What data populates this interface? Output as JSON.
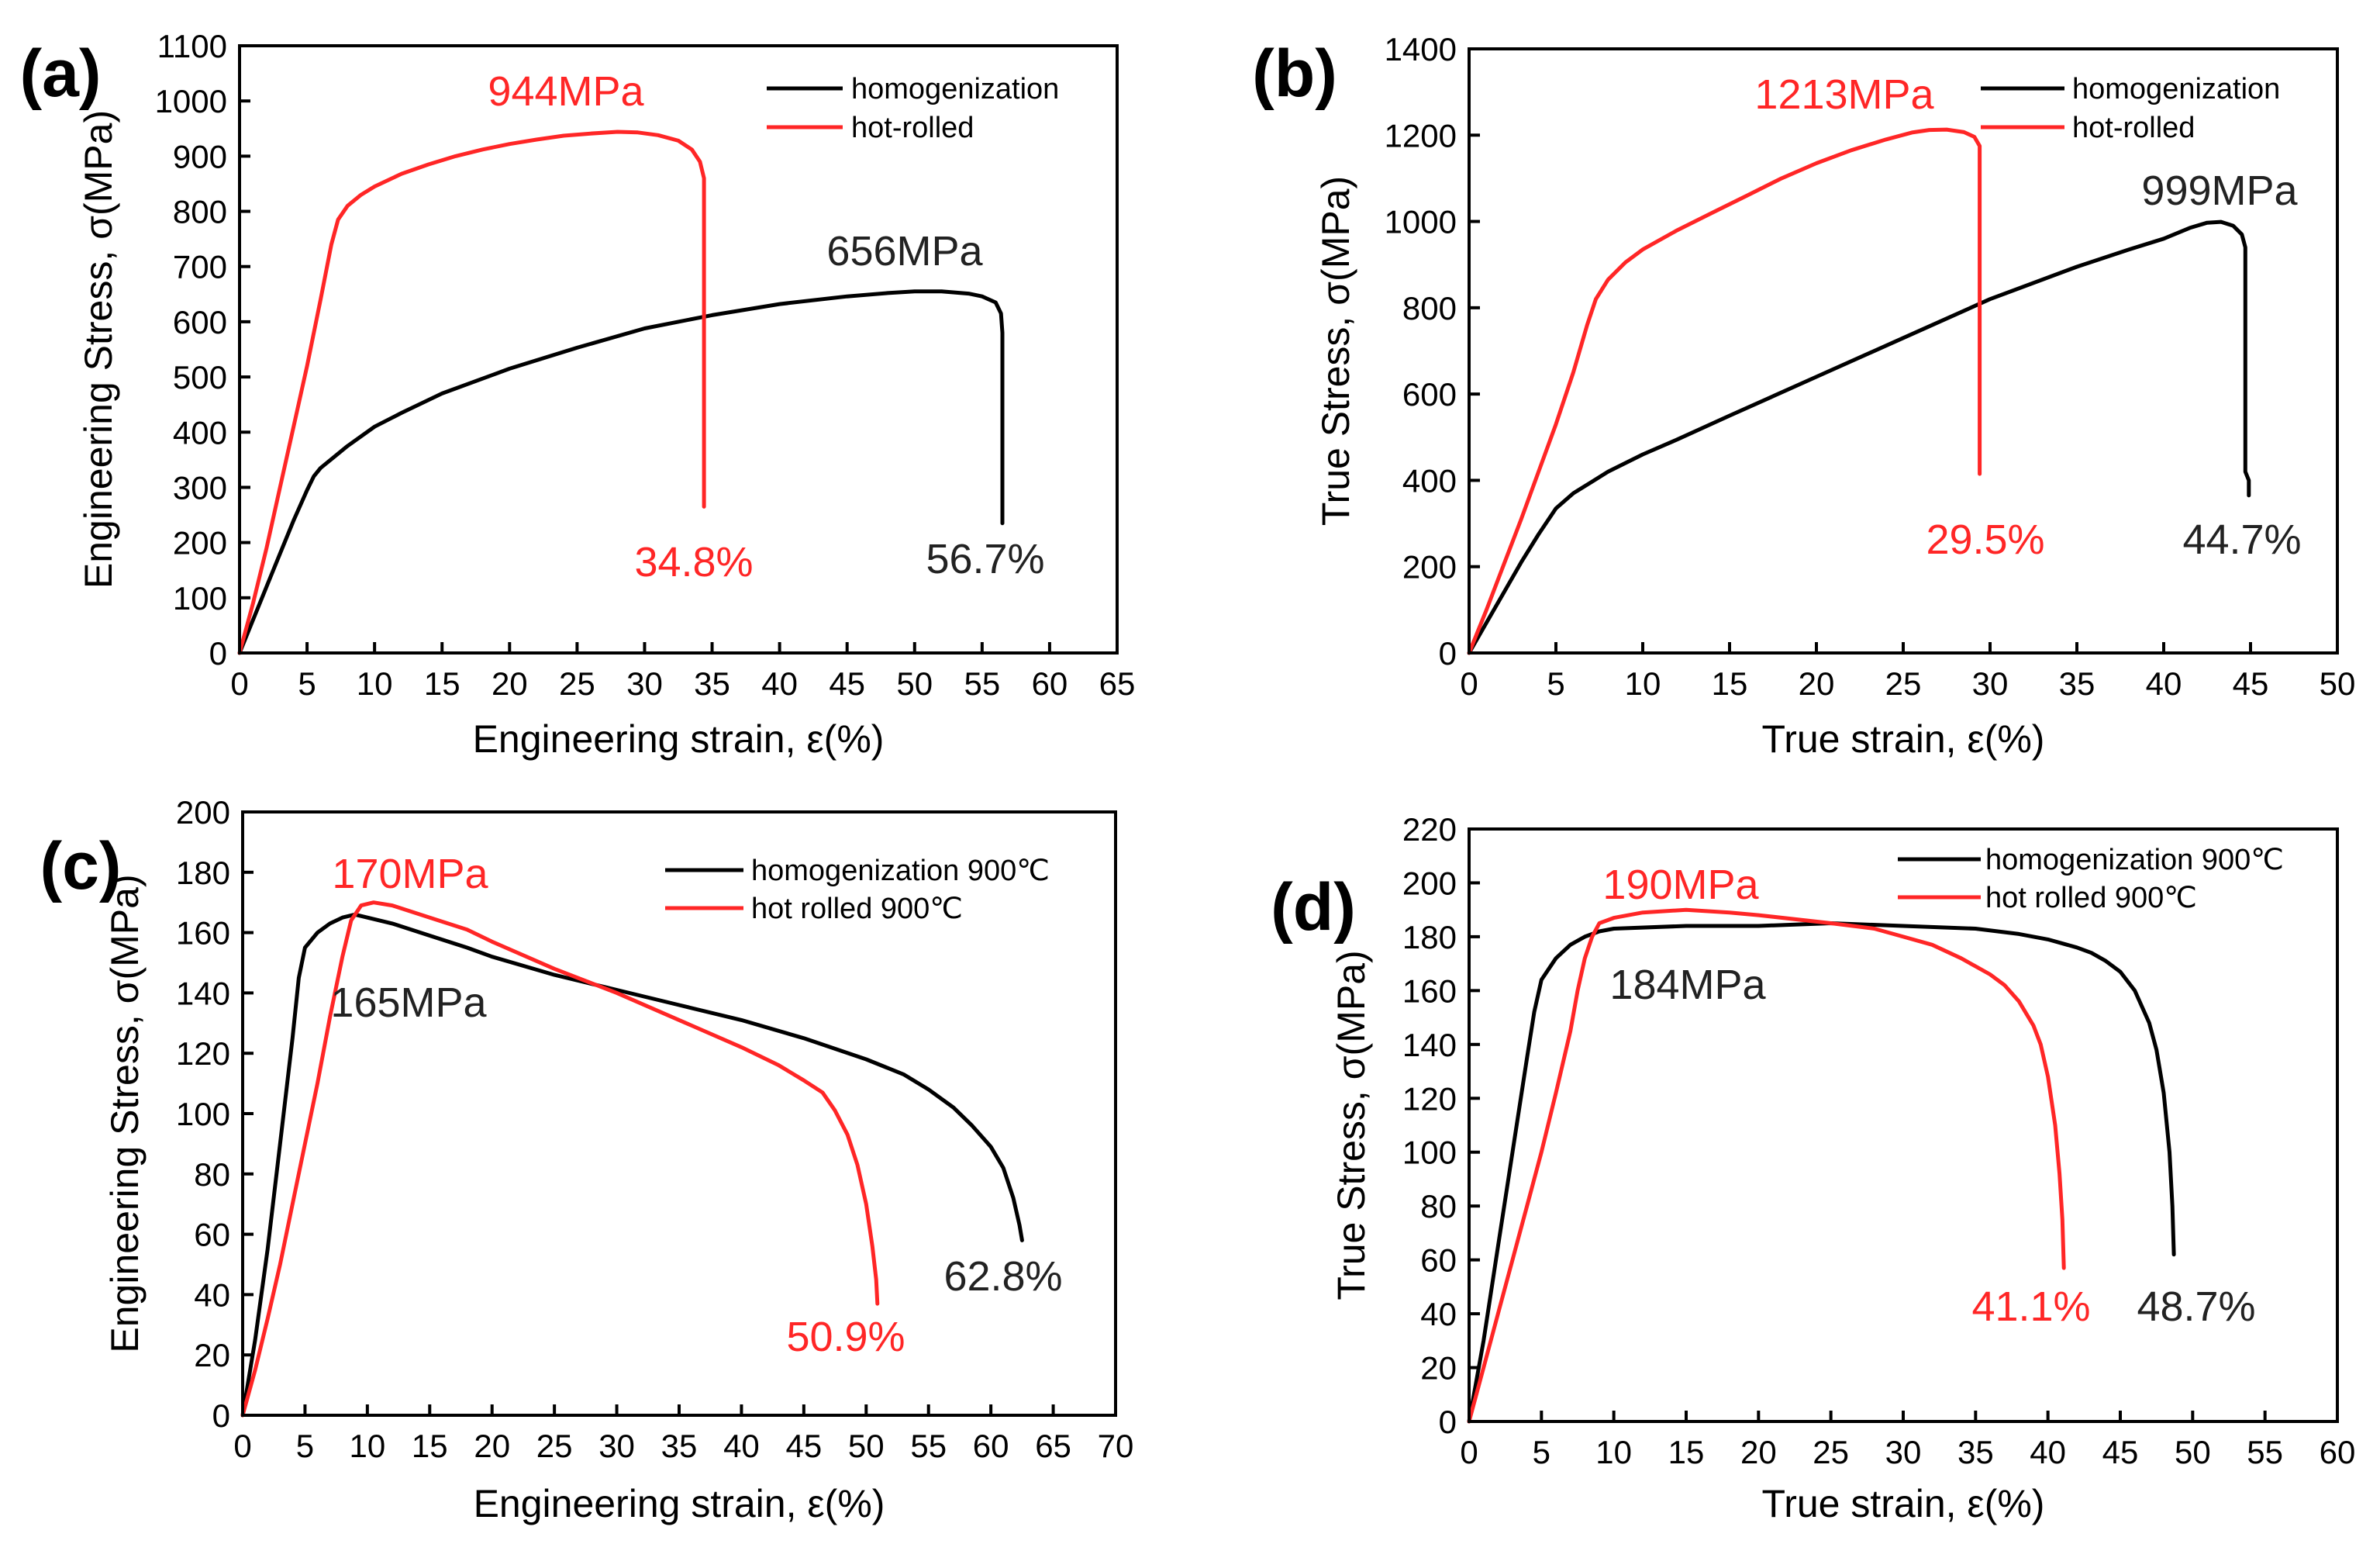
{
  "chart_data": [
    {
      "type": "line",
      "panel_label": "(a)",
      "xlabel": "Engineering strain, ε(%)",
      "ylabel": "Engineering Stress, σ(MPa)",
      "xlim": [
        0,
        65
      ],
      "ylim": [
        0,
        1100
      ],
      "xticks": [
        0,
        5,
        10,
        15,
        20,
        25,
        30,
        35,
        40,
        45,
        50,
        55,
        60,
        65
      ],
      "yticks": [
        0,
        100,
        200,
        300,
        400,
        500,
        600,
        700,
        800,
        900,
        1000,
        1100
      ],
      "series": [
        {
          "name": "homogenization",
          "color": "#000000",
          "x": [
            0,
            1,
            2,
            3,
            4,
            5,
            5.5,
            6,
            7,
            8,
            10,
            12,
            15,
            18,
            20,
            25,
            30,
            35,
            40,
            45,
            48,
            50,
            52,
            54,
            55,
            56,
            56.4,
            56.5,
            56.5
          ],
          "y": [
            0,
            60,
            120,
            180,
            240,
            295,
            320,
            335,
            355,
            375,
            410,
            435,
            470,
            497,
            515,
            553,
            588,
            612,
            632,
            646,
            652,
            655,
            655,
            651,
            646,
            635,
            615,
            580,
            235
          ]
        },
        {
          "name": "hot-rolled",
          "color": "#ff2626",
          "x": [
            0,
            1,
            2,
            3,
            4,
            5,
            6,
            6.8,
            7.3,
            8,
            9,
            10,
            12,
            14,
            16,
            18,
            20,
            22,
            24,
            26,
            28,
            29.5,
            31,
            32.5,
            33.5,
            34.1,
            34.4,
            34.4
          ],
          "y": [
            0,
            90,
            190,
            300,
            410,
            520,
            640,
            740,
            785,
            810,
            830,
            845,
            868,
            885,
            900,
            912,
            922,
            930,
            937,
            941,
            944,
            943,
            938,
            928,
            912,
            890,
            860,
            265
          ]
        }
      ],
      "annotations": [
        {
          "text": "944MPa",
          "color": "#ff2626"
        },
        {
          "text": "656MPa",
          "color": "#222222"
        },
        {
          "text": "34.8%",
          "color": "#ff2626"
        },
        {
          "text": "56.7%",
          "color": "#222222"
        }
      ]
    },
    {
      "type": "line",
      "panel_label": "(b)",
      "xlabel": "True strain, ε(%)",
      "ylabel": "True Stress, σ(MPa)",
      "xlim": [
        0,
        50
      ],
      "ylim": [
        0,
        1400
      ],
      "xticks": [
        0,
        5,
        10,
        15,
        20,
        25,
        30,
        35,
        40,
        45,
        50
      ],
      "yticks": [
        0,
        200,
        400,
        600,
        800,
        1000,
        1200,
        1400
      ],
      "series": [
        {
          "name": "homogenization",
          "color": "#000000",
          "x": [
            0,
            1,
            2,
            3,
            4,
            5,
            6,
            7,
            8,
            10,
            12,
            15,
            20,
            25,
            30,
            35,
            38,
            40,
            41.5,
            42.5,
            43.3,
            44,
            44.5,
            44.7,
            44.7,
            44.9,
            44.9
          ],
          "y": [
            0,
            70,
            140,
            210,
            275,
            335,
            370,
            395,
            420,
            460,
            495,
            550,
            640,
            730,
            820,
            895,
            935,
            960,
            985,
            997,
            999,
            990,
            970,
            940,
            420,
            400,
            365
          ]
        },
        {
          "name": "hot-rolled",
          "color": "#ff2626",
          "x": [
            0,
            1,
            2,
            3,
            4,
            5,
            6,
            6.8,
            7.3,
            8,
            9,
            10,
            12,
            14,
            16,
            18,
            20,
            22,
            24,
            25.5,
            26.5,
            27.5,
            28.5,
            29.1,
            29.4,
            29.4
          ],
          "y": [
            0,
            100,
            205,
            310,
            420,
            530,
            650,
            760,
            820,
            865,
            905,
            935,
            980,
            1020,
            1060,
            1100,
            1135,
            1165,
            1190,
            1206,
            1212,
            1213,
            1207,
            1196,
            1175,
            415
          ]
        }
      ],
      "annotations": [
        {
          "text": "1213MPa",
          "color": "#ff2626"
        },
        {
          "text": "999MPa",
          "color": "#222222"
        },
        {
          "text": "29.5%",
          "color": "#ff2626"
        },
        {
          "text": "44.7%",
          "color": "#222222"
        }
      ]
    },
    {
      "type": "line",
      "panel_label": "(c)",
      "xlabel": "Engineering strain, ε(%)",
      "ylabel": "Engineering Stress, σ(MPa)",
      "xlim": [
        0,
        70
      ],
      "ylim": [
        0,
        200
      ],
      "xticks": [
        0,
        5,
        10,
        15,
        20,
        25,
        30,
        35,
        40,
        45,
        50,
        55,
        60,
        65,
        70
      ],
      "yticks": [
        0,
        20,
        40,
        60,
        80,
        100,
        120,
        140,
        160,
        180,
        200
      ],
      "series": [
        {
          "name": "homogenization 900℃",
          "color": "#000000",
          "x": [
            0,
            1,
            2,
            3,
            4,
            4.5,
            5,
            6,
            7,
            8,
            9,
            10,
            12,
            15,
            18,
            20,
            25,
            30,
            35,
            40,
            45,
            50,
            53,
            55,
            57,
            58.5,
            60,
            61,
            61.8,
            62.3,
            62.5
          ],
          "y": [
            0,
            25,
            55,
            90,
            125,
            145,
            155,
            160,
            163,
            165,
            166,
            165,
            163,
            159,
            155,
            152,
            146,
            141,
            136,
            131,
            125,
            118,
            113,
            108,
            102,
            96,
            89,
            82,
            72,
            63,
            58
          ]
        },
        {
          "name": "hot rolled 900℃",
          "color": "#ff2626",
          "x": [
            0,
            1,
            2,
            3,
            4,
            5,
            6,
            7,
            8,
            8.7,
            9.5,
            10.5,
            12,
            15,
            18,
            20,
            25,
            30,
            35,
            40,
            43,
            45,
            46.5,
            47.5,
            48.5,
            49.3,
            50,
            50.5,
            50.8,
            50.9
          ],
          "y": [
            0,
            15,
            32,
            50,
            70,
            90,
            110,
            132,
            152,
            164,
            169,
            170,
            169,
            165,
            161,
            157,
            148,
            140,
            131,
            122,
            116,
            111,
            107,
            101,
            93,
            83,
            70,
            56,
            45,
            37
          ]
        }
      ],
      "annotations": [
        {
          "text": "170MPa",
          "color": "#ff2626"
        },
        {
          "text": "165MPa",
          "color": "#222222"
        },
        {
          "text": "62.8%",
          "color": "#222222"
        },
        {
          "text": "50.9%",
          "color": "#ff2626"
        }
      ]
    },
    {
      "type": "line",
      "panel_label": "(d)",
      "xlabel": "True strain, ε(%)",
      "ylabel": "True Stress, σ(MPa)",
      "xlim": [
        0,
        60
      ],
      "ylim": [
        0,
        220
      ],
      "xticks": [
        0,
        5,
        10,
        15,
        20,
        25,
        30,
        35,
        40,
        45,
        50,
        55,
        60
      ],
      "yticks": [
        0,
        20,
        40,
        60,
        80,
        100,
        120,
        140,
        160,
        180,
        200,
        220
      ],
      "series": [
        {
          "name": "homogenization 900℃",
          "color": "#000000",
          "x": [
            0,
            1,
            2,
            3,
            4,
            4.5,
            5,
            6,
            7,
            8,
            9,
            10,
            15,
            20,
            25,
            30,
            35,
            38,
            40,
            42,
            43,
            44,
            45,
            46,
            47,
            47.5,
            48,
            48.4,
            48.6,
            48.7
          ],
          "y": [
            0,
            30,
            65,
            100,
            135,
            152,
            164,
            172,
            177,
            180,
            182,
            183,
            184,
            184,
            185,
            184,
            183,
            181,
            179,
            176,
            174,
            171,
            167,
            160,
            148,
            138,
            122,
            100,
            80,
            62
          ]
        },
        {
          "name": "hot rolled 900℃",
          "color": "#ff2626",
          "x": [
            0,
            1,
            2,
            3,
            4,
            5,
            6,
            7,
            7.5,
            8,
            8.5,
            9,
            10,
            12,
            15,
            18,
            20,
            25,
            28,
            30,
            32,
            34,
            35,
            36,
            37,
            38,
            39,
            39.5,
            40,
            40.5,
            40.8,
            41,
            41.1
          ],
          "y": [
            0,
            20,
            40,
            60,
            80,
            100,
            122,
            145,
            160,
            172,
            180,
            185,
            187,
            189,
            190,
            189,
            188,
            185,
            183,
            180,
            177,
            172,
            169,
            166,
            162,
            156,
            147,
            140,
            128,
            110,
            92,
            75,
            57
          ]
        }
      ],
      "annotations": [
        {
          "text": "190MPa",
          "color": "#ff2626"
        },
        {
          "text": "184MPa",
          "color": "#222222"
        },
        {
          "text": "41.1%",
          "color": "#ff2626"
        },
        {
          "text": "48.7%",
          "color": "#222222"
        }
      ]
    }
  ]
}
